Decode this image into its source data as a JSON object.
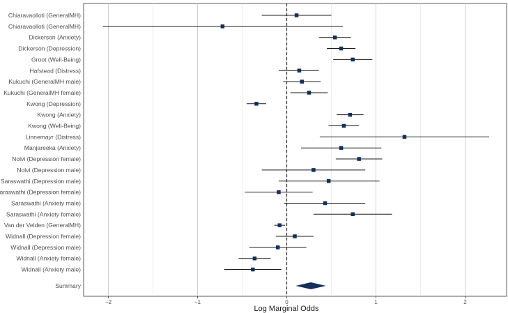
{
  "chart_data": {
    "type": "forest",
    "xlabel": "Log Marginal Odds",
    "ylabel": "",
    "title": "",
    "xlim": [
      -2.28,
      2.5
    ],
    "xticks": [
      -2,
      -1,
      0,
      1,
      2
    ],
    "grid": true,
    "reference_line": 0,
    "marker_color": "#12305a",
    "line_color": "#1a1a1a",
    "rows": [
      {
        "label": "Chiaravaolloti (GeneralMH)",
        "est": 0.11,
        "lo": -0.28,
        "hi": 0.5
      },
      {
        "label": "Chiaravaolloti (GeneralMH)",
        "est": -0.72,
        "lo": -2.06,
        "hi": 0.63
      },
      {
        "label": "Dickerson (Anxiety)",
        "est": 0.54,
        "lo": 0.36,
        "hi": 0.72
      },
      {
        "label": "Dickerson (Depression)",
        "est": 0.61,
        "lo": 0.45,
        "hi": 0.77
      },
      {
        "label": "Groot (Well-Being)",
        "est": 0.74,
        "lo": 0.52,
        "hi": 0.96
      },
      {
        "label": "Hafstead (Distress)",
        "est": 0.14,
        "lo": -0.09,
        "hi": 0.36
      },
      {
        "label": "Kukuchi (GeneralMH male)",
        "est": 0.17,
        "lo": -0.04,
        "hi": 0.38
      },
      {
        "label": "Kukuchi (GeneralMH female)",
        "est": 0.25,
        "lo": 0.04,
        "hi": 0.46
      },
      {
        "label": "Kwong (Depression)",
        "est": -0.34,
        "lo": -0.45,
        "hi": -0.23
      },
      {
        "label": "Kwong (Anxiety)",
        "est": 0.71,
        "lo": 0.56,
        "hi": 0.86
      },
      {
        "label": "Kwong (Well-Being)",
        "est": 0.64,
        "lo": 0.47,
        "hi": 0.81
      },
      {
        "label": "Linnemayr (Distress)",
        "est": 1.32,
        "lo": 0.37,
        "hi": 2.27
      },
      {
        "label": "Manjareeka (Anxiety)",
        "est": 0.61,
        "lo": 0.16,
        "hi": 1.06
      },
      {
        "label": "Nolvi (Depression female)",
        "est": 0.81,
        "lo": 0.55,
        "hi": 1.07
      },
      {
        "label": "Nolvi (Depression male)",
        "est": 0.3,
        "lo": -0.28,
        "hi": 0.88
      },
      {
        "label": "Saraswathi (Depression male)",
        "est": 0.47,
        "lo": -0.09,
        "hi": 1.04
      },
      {
        "label": "Saraswathi (Depression female)",
        "est": -0.09,
        "lo": -0.47,
        "hi": 0.29
      },
      {
        "label": "Saraswathi (Anxiety male)",
        "est": 0.43,
        "lo": -0.03,
        "hi": 0.88
      },
      {
        "label": "Saraswathi (Anxiety female)",
        "est": 0.74,
        "lo": 0.3,
        "hi": 1.18
      },
      {
        "label": "Van der Velden (GeneralMH)",
        "est": -0.08,
        "lo": -0.14,
        "hi": -0.02
      },
      {
        "label": "Widnall (Depression female)",
        "est": 0.09,
        "lo": -0.12,
        "hi": 0.3
      },
      {
        "label": "Widnall (Depression male)",
        "est": -0.1,
        "lo": -0.42,
        "hi": 0.22
      },
      {
        "label": "Widnall (Anxiety female)",
        "est": -0.36,
        "lo": -0.54,
        "hi": -0.18
      },
      {
        "label": "Widnall (Anxiety male)",
        "est": -0.38,
        "lo": -0.7,
        "hi": -0.06
      }
    ],
    "summary": {
      "label": "Summary",
      "est": 0.27,
      "lo": 0.1,
      "hi": 0.44
    }
  }
}
